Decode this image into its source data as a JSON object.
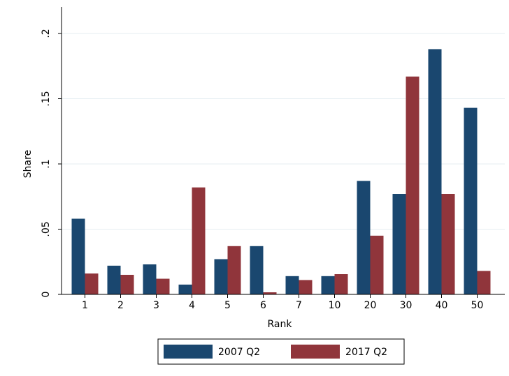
{
  "chart_data": {
    "type": "bar",
    "xlabel": "Rank",
    "ylabel": "Share",
    "categories": [
      "1",
      "2",
      "3",
      "4",
      "5",
      "6",
      "7",
      "10",
      "20",
      "30",
      "40",
      "50"
    ],
    "series": [
      {
        "name": "2007 Q2",
        "color": "#1a476f",
        "values": [
          0.058,
          0.022,
          0.023,
          0.0075,
          0.027,
          0.037,
          0.014,
          0.014,
          0.087,
          0.077,
          0.188,
          0.143
        ]
      },
      {
        "name": "2017 Q2",
        "color": "#90353b",
        "values": [
          0.016,
          0.015,
          0.012,
          0.082,
          0.037,
          0.0016,
          0.011,
          0.0155,
          0.045,
          0.167,
          0.077,
          0.018
        ]
      }
    ],
    "ylim": [
      0,
      0.2
    ],
    "yticks": [
      0,
      {
        "value": 0.05,
        "label": ".05"
      },
      {
        "value": 0.1,
        "label": ".1"
      },
      {
        "value": 0.15,
        "label": ".15"
      },
      {
        "value": 0.2,
        "label": ".2"
      }
    ],
    "grid": true,
    "legend": "bottom"
  }
}
